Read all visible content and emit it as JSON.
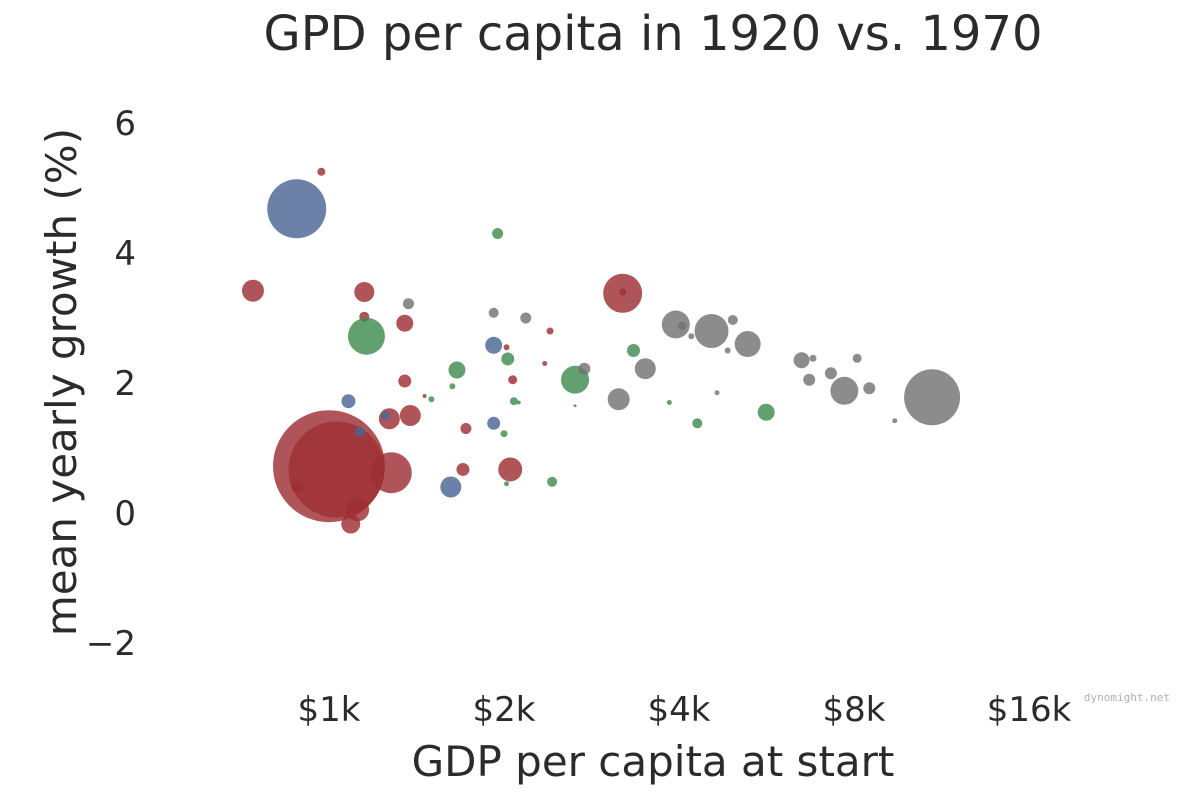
{
  "chart_data": {
    "type": "scatter",
    "title": "GPD per capita in 1920 vs. 1970",
    "xlabel": "GDP per capita at start",
    "ylabel": "mean yearly growth (%)",
    "x_scale": "log2",
    "xlim": [
      520,
      22000
    ],
    "ylim": [
      -2.8,
      6.8
    ],
    "x_ticks": [
      {
        "value": 1000,
        "label": "$1k"
      },
      {
        "value": 2000,
        "label": "$2k"
      },
      {
        "value": 4000,
        "label": "$4k"
      },
      {
        "value": 8000,
        "label": "$8k"
      },
      {
        "value": 16000,
        "label": "$16k"
      }
    ],
    "y_ticks": [
      {
        "value": 6,
        "label": "6"
      },
      {
        "value": 4,
        "label": "4"
      },
      {
        "value": 2,
        "label": "2"
      },
      {
        "value": 0,
        "label": "0"
      },
      {
        "value": -2,
        "label": "−2"
      }
    ],
    "grid": false,
    "legend": "none",
    "credit": "dynomight.net",
    "colors": {
      "red": "#9e3034",
      "blue": "#4a6595",
      "green": "#3f8b4f",
      "gray": "#737373"
    },
    "series": [
      {
        "color": "red",
        "points": [
          [
            970,
            5.25,
            4
          ],
          [
            740,
            3.42,
            11
          ],
          [
            1150,
            3.4,
            10
          ],
          [
            1150,
            3.02,
            5
          ],
          [
            1350,
            2.92,
            8.5
          ],
          [
            1350,
            2.03,
            6.5
          ],
          [
            1270,
            1.45,
            10.5
          ],
          [
            1380,
            1.5,
            10.5
          ],
          [
            1460,
            1.8,
            2
          ],
          [
            1000,
            0.72,
            56
          ],
          [
            1030,
            0.67,
            48
          ],
          [
            1280,
            0.62,
            20.5
          ],
          [
            880,
            0.4,
            5.5
          ],
          [
            1120,
            0.05,
            11.5
          ],
          [
            1090,
            -0.17,
            9.5
          ],
          [
            1700,
            0.67,
            6.5
          ],
          [
            1720,
            1.3,
            5.5
          ],
          [
            2020,
            2.55,
            3
          ],
          [
            2070,
            2.05,
            4.5
          ],
          [
            2050,
            0.67,
            12
          ],
          [
            2400,
            2.8,
            3.5
          ],
          [
            2350,
            2.3,
            2.5
          ],
          [
            3200,
            3.38,
            19.5
          ],
          [
            3200,
            3.4,
            3.5
          ]
        ]
      },
      {
        "color": "blue",
        "points": [
          [
            880,
            4.68,
            29.5
          ],
          [
            1080,
            1.72,
            7
          ],
          [
            1130,
            1.25,
            5
          ],
          [
            1250,
            1.5,
            4.5
          ],
          [
            1620,
            0.4,
            10.5
          ],
          [
            1920,
            2.58,
            8.5
          ],
          [
            1920,
            1.38,
            6.5
          ]
        ]
      },
      {
        "color": "green",
        "points": [
          [
            1160,
            2.72,
            18.5
          ],
          [
            1630,
            1.95,
            3
          ],
          [
            1660,
            2.2,
            8.5
          ],
          [
            1950,
            4.3,
            5.5
          ],
          [
            2030,
            2.37,
            6.5
          ],
          [
            2000,
            1.22,
            3.5
          ],
          [
            2080,
            1.72,
            4
          ],
          [
            2020,
            0.45,
            2.5
          ],
          [
            2120,
            1.7,
            2
          ],
          [
            2420,
            0.48,
            5
          ],
          [
            2650,
            2.05,
            14
          ],
          [
            3340,
            2.5,
            6.5
          ],
          [
            3850,
            1.7,
            2.5
          ],
          [
            4300,
            1.38,
            5
          ],
          [
            5650,
            1.55,
            8.5
          ],
          [
            1500,
            1.75,
            3
          ],
          [
            2650,
            1.65,
            1.5
          ]
        ]
      },
      {
        "color": "gray",
        "points": [
          [
            1370,
            3.22,
            5.5
          ],
          [
            1920,
            3.08,
            5
          ],
          [
            2180,
            3.0,
            5.5
          ],
          [
            2750,
            2.22,
            6
          ],
          [
            3150,
            1.75,
            11
          ],
          [
            3500,
            2.22,
            10.5
          ],
          [
            3950,
            2.9,
            14
          ],
          [
            4050,
            2.88,
            4.5
          ],
          [
            4550,
            2.8,
            17
          ],
          [
            4950,
            2.97,
            5
          ],
          [
            4850,
            2.5,
            3
          ],
          [
            5250,
            2.6,
            13
          ],
          [
            6500,
            2.35,
            8
          ],
          [
            6800,
            2.38,
            3.5
          ],
          [
            6700,
            2.05,
            6
          ],
          [
            7300,
            2.15,
            6
          ],
          [
            7700,
            1.88,
            14
          ],
          [
            8100,
            2.38,
            4.5
          ],
          [
            8500,
            1.92,
            6
          ],
          [
            9400,
            1.42,
            2.5
          ],
          [
            10900,
            1.78,
            28
          ],
          [
            4650,
            1.85,
            2.5
          ],
          [
            4200,
            2.72,
            3
          ]
        ]
      }
    ]
  }
}
